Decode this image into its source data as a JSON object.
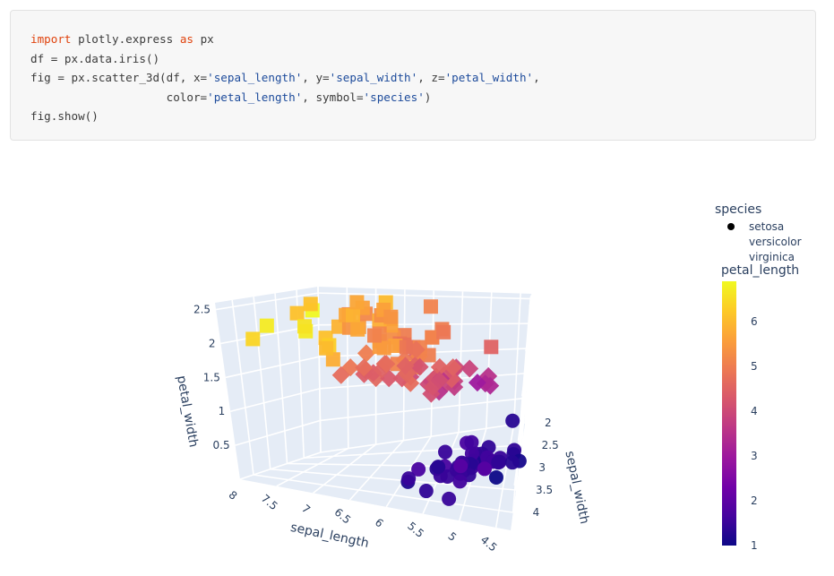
{
  "code": {
    "lines": [
      [
        [
          "kw",
          "import"
        ],
        [
          "t",
          " plotly.express "
        ],
        [
          "kw",
          "as"
        ],
        [
          "t",
          " px"
        ]
      ],
      [
        [
          "t",
          "df = px.data.iris()"
        ]
      ],
      [
        [
          "t",
          "fig = px.scatter_3d(df, x="
        ],
        [
          "str",
          "'sepal_length'"
        ],
        [
          "t",
          ", y="
        ],
        [
          "str",
          "'sepal_width'"
        ],
        [
          "t",
          ", z="
        ],
        [
          "str",
          "'petal_width'"
        ],
        [
          "t",
          ","
        ]
      ],
      [
        [
          "t",
          "                    color="
        ],
        [
          "str",
          "'petal_length'"
        ],
        [
          "t",
          ", symbol="
        ],
        [
          "str",
          "'species'"
        ],
        [
          "t",
          ")"
        ]
      ],
      [
        [
          "t",
          "fig.show()"
        ]
      ]
    ]
  },
  "chart_data": {
    "type": "scatter3d",
    "x_label": "sepal_length",
    "y_label": "sepal_width",
    "z_label": "petal_width",
    "x_ticks": [
      "4.5",
      "5",
      "5.5",
      "6",
      "6.5",
      "7",
      "7.5",
      "8"
    ],
    "y_ticks": [
      "2",
      "2.5",
      "3",
      "3.5",
      "4"
    ],
    "z_ticks": [
      "0.5",
      "1",
      "1.5",
      "2",
      "2.5"
    ],
    "x_range": [
      4.3,
      8
    ],
    "y_range": [
      2,
      4.4
    ],
    "z_range": [
      0,
      2.6
    ],
    "background_color": "#e5ecf6",
    "colorbar": {
      "title": "petal_length",
      "ticks": [
        "1",
        "2",
        "3",
        "4",
        "5",
        "6"
      ],
      "range": [
        1,
        6.9
      ],
      "colorscale": "plasma",
      "stops": [
        "#0d0887",
        "#46039f",
        "#7201a8",
        "#9c179e",
        "#bd3786",
        "#d8576b",
        "#ed7953",
        "#fb9f3a",
        "#fdca26",
        "#f0f921"
      ]
    },
    "legend": {
      "title": "species",
      "position": "top-right",
      "items": [
        {
          "name": "setosa",
          "symbol": "circle"
        },
        {
          "name": "versicolor",
          "symbol": "diamond"
        },
        {
          "name": "virginica",
          "symbol": "square"
        }
      ]
    },
    "series": [
      {
        "name": "setosa",
        "symbol": "circle",
        "points": [
          [
            5.1,
            3.5,
            1.4,
            0.2
          ],
          [
            4.9,
            3.0,
            1.4,
            0.2
          ],
          [
            4.7,
            3.2,
            1.3,
            0.2
          ],
          [
            4.6,
            3.1,
            1.5,
            0.2
          ],
          [
            5.0,
            3.6,
            1.4,
            0.2
          ],
          [
            5.4,
            3.9,
            1.7,
            0.4
          ],
          [
            4.6,
            3.4,
            1.4,
            0.3
          ],
          [
            5.0,
            3.4,
            1.5,
            0.2
          ],
          [
            4.4,
            2.9,
            1.4,
            0.2
          ],
          [
            4.9,
            3.1,
            1.5,
            0.1
          ],
          [
            5.4,
            3.7,
            1.5,
            0.2
          ],
          [
            4.8,
            3.4,
            1.6,
            0.2
          ],
          [
            4.8,
            3.0,
            1.4,
            0.1
          ],
          [
            4.3,
            3.0,
            1.1,
            0.1
          ],
          [
            5.8,
            4.0,
            1.2,
            0.2
          ],
          [
            5.7,
            4.4,
            1.5,
            0.4
          ],
          [
            5.4,
            3.9,
            1.3,
            0.4
          ],
          [
            5.1,
            3.5,
            1.4,
            0.3
          ],
          [
            5.7,
            3.8,
            1.7,
            0.3
          ],
          [
            5.1,
            3.8,
            1.5,
            0.3
          ],
          [
            5.4,
            3.4,
            1.7,
            0.2
          ],
          [
            5.1,
            3.7,
            1.5,
            0.4
          ],
          [
            4.6,
            3.6,
            1.0,
            0.2
          ],
          [
            5.1,
            3.3,
            1.7,
            0.5
          ],
          [
            4.8,
            3.4,
            1.9,
            0.2
          ],
          [
            5.0,
            3.0,
            1.6,
            0.2
          ],
          [
            5.0,
            3.4,
            1.6,
            0.4
          ],
          [
            5.2,
            3.5,
            1.5,
            0.2
          ],
          [
            5.2,
            3.4,
            1.4,
            0.2
          ],
          [
            4.7,
            3.2,
            1.6,
            0.2
          ],
          [
            4.8,
            3.1,
            1.6,
            0.2
          ],
          [
            5.4,
            3.4,
            1.5,
            0.4
          ],
          [
            5.2,
            4.1,
            1.5,
            0.1
          ],
          [
            5.5,
            4.2,
            1.4,
            0.2
          ],
          [
            4.9,
            3.1,
            1.5,
            0.1
          ],
          [
            5.0,
            3.2,
            1.2,
            0.2
          ],
          [
            5.5,
            3.5,
            1.3,
            0.2
          ],
          [
            4.9,
            3.1,
            1.5,
            0.1
          ],
          [
            4.4,
            3.0,
            1.3,
            0.2
          ],
          [
            5.1,
            3.4,
            1.5,
            0.2
          ],
          [
            5.0,
            3.5,
            1.3,
            0.3
          ],
          [
            4.5,
            2.3,
            1.3,
            0.3
          ],
          [
            4.4,
            3.2,
            1.3,
            0.2
          ],
          [
            5.0,
            3.5,
            1.6,
            0.6
          ],
          [
            5.1,
            3.8,
            1.9,
            0.4
          ],
          [
            4.8,
            3.0,
            1.4,
            0.3
          ],
          [
            5.1,
            3.8,
            1.6,
            0.2
          ],
          [
            4.6,
            3.2,
            1.4,
            0.2
          ],
          [
            5.3,
            3.7,
            1.5,
            0.2
          ],
          [
            5.0,
            3.3,
            1.4,
            0.2
          ]
        ]
      },
      {
        "name": "versicolor",
        "symbol": "diamond",
        "points": [
          [
            7.0,
            3.2,
            4.7,
            1.4
          ],
          [
            6.4,
            3.2,
            4.5,
            1.5
          ],
          [
            6.9,
            3.1,
            4.9,
            1.5
          ],
          [
            5.5,
            2.3,
            4.0,
            1.3
          ],
          [
            6.5,
            2.8,
            4.6,
            1.5
          ],
          [
            5.7,
            2.8,
            4.5,
            1.3
          ],
          [
            6.3,
            3.3,
            4.7,
            1.6
          ],
          [
            4.9,
            2.4,
            3.3,
            1.0
          ],
          [
            6.6,
            2.9,
            4.6,
            1.3
          ],
          [
            5.2,
            2.7,
            3.9,
            1.4
          ],
          [
            5.0,
            2.0,
            3.5,
            1.0
          ],
          [
            5.9,
            3.0,
            4.2,
            1.5
          ],
          [
            6.0,
            2.2,
            4.0,
            1.0
          ],
          [
            6.1,
            2.9,
            4.7,
            1.4
          ],
          [
            5.6,
            2.9,
            3.6,
            1.3
          ],
          [
            6.7,
            3.1,
            4.4,
            1.4
          ],
          [
            5.6,
            3.0,
            4.5,
            1.5
          ],
          [
            5.8,
            2.7,
            4.1,
            1.0
          ],
          [
            6.2,
            2.2,
            4.5,
            1.5
          ],
          [
            5.6,
            2.5,
            3.9,
            1.1
          ],
          [
            5.9,
            3.2,
            4.8,
            1.8
          ],
          [
            6.1,
            2.8,
            4.0,
            1.3
          ],
          [
            6.3,
            2.5,
            4.9,
            1.5
          ],
          [
            6.1,
            2.8,
            4.7,
            1.2
          ],
          [
            6.4,
            2.9,
            4.3,
            1.3
          ],
          [
            6.6,
            3.0,
            4.4,
            1.4
          ],
          [
            6.8,
            2.8,
            4.8,
            1.4
          ],
          [
            6.7,
            3.0,
            5.0,
            1.7
          ],
          [
            6.0,
            2.9,
            4.5,
            1.5
          ],
          [
            5.7,
            2.6,
            3.5,
            1.0
          ],
          [
            5.5,
            2.4,
            3.8,
            1.1
          ],
          [
            5.5,
            2.4,
            3.7,
            1.0
          ],
          [
            5.8,
            2.7,
            3.9,
            1.2
          ],
          [
            6.0,
            2.7,
            5.1,
            1.6
          ],
          [
            5.4,
            3.0,
            4.5,
            1.5
          ],
          [
            6.0,
            3.4,
            4.5,
            1.6
          ],
          [
            6.7,
            3.1,
            4.7,
            1.5
          ],
          [
            6.3,
            2.3,
            4.4,
            1.3
          ],
          [
            5.6,
            3.0,
            4.1,
            1.3
          ],
          [
            5.5,
            2.5,
            4.0,
            1.3
          ],
          [
            5.5,
            2.6,
            4.4,
            1.2
          ],
          [
            6.1,
            3.0,
            4.6,
            1.4
          ],
          [
            5.8,
            2.6,
            4.0,
            1.2
          ],
          [
            5.0,
            2.3,
            3.3,
            1.0
          ],
          [
            5.6,
            2.7,
            4.2,
            1.3
          ],
          [
            5.7,
            3.0,
            4.2,
            1.2
          ],
          [
            5.7,
            2.9,
            4.2,
            1.3
          ],
          [
            6.2,
            2.9,
            4.3,
            1.3
          ],
          [
            5.1,
            2.5,
            3.0,
            1.1
          ],
          [
            5.7,
            2.8,
            4.1,
            1.3
          ]
        ]
      },
      {
        "name": "virginica",
        "symbol": "square",
        "points": [
          [
            6.3,
            3.3,
            6.0,
            2.5
          ],
          [
            5.8,
            2.7,
            5.1,
            1.9
          ],
          [
            7.1,
            3.0,
            5.9,
            2.1
          ],
          [
            6.3,
            2.9,
            5.6,
            1.8
          ],
          [
            6.5,
            3.0,
            5.8,
            2.2
          ],
          [
            7.6,
            3.0,
            6.6,
            2.1
          ],
          [
            4.9,
            2.5,
            4.5,
            1.7
          ],
          [
            7.3,
            2.9,
            6.3,
            1.8
          ],
          [
            6.7,
            2.5,
            5.8,
            1.8
          ],
          [
            7.2,
            3.6,
            6.1,
            2.5
          ],
          [
            6.5,
            3.2,
            5.1,
            2.0
          ],
          [
            6.4,
            2.7,
            5.3,
            1.9
          ],
          [
            6.8,
            3.0,
            5.5,
            2.1
          ],
          [
            5.7,
            2.5,
            5.0,
            2.0
          ],
          [
            5.8,
            2.8,
            5.1,
            2.4
          ],
          [
            6.4,
            3.2,
            5.3,
            2.3
          ],
          [
            6.5,
            3.0,
            5.5,
            1.8
          ],
          [
            7.7,
            3.8,
            6.7,
            2.2
          ],
          [
            7.7,
            2.6,
            6.9,
            2.3
          ],
          [
            6.0,
            2.2,
            5.0,
            1.5
          ],
          [
            6.9,
            3.2,
            5.7,
            2.3
          ],
          [
            5.6,
            2.8,
            4.9,
            2.0
          ],
          [
            7.7,
            2.8,
            6.7,
            2.0
          ],
          [
            6.3,
            2.7,
            4.9,
            1.8
          ],
          [
            6.7,
            3.3,
            5.7,
            2.1
          ],
          [
            7.2,
            3.2,
            6.0,
            1.8
          ],
          [
            6.2,
            2.8,
            4.8,
            1.8
          ],
          [
            6.1,
            3.0,
            4.9,
            1.8
          ],
          [
            6.4,
            2.8,
            5.6,
            2.1
          ],
          [
            7.2,
            3.0,
            5.8,
            1.6
          ],
          [
            7.4,
            2.8,
            6.1,
            1.9
          ],
          [
            7.9,
            3.8,
            6.4,
            2.0
          ],
          [
            6.4,
            2.8,
            5.6,
            2.2
          ],
          [
            6.3,
            2.8,
            5.1,
            1.5
          ],
          [
            6.1,
            2.6,
            5.6,
            1.4
          ],
          [
            7.7,
            3.0,
            6.1,
            2.3
          ],
          [
            6.3,
            3.4,
            5.6,
            2.4
          ],
          [
            6.4,
            3.1,
            5.5,
            1.8
          ],
          [
            6.0,
            3.0,
            4.8,
            1.8
          ],
          [
            6.9,
            3.1,
            5.4,
            2.1
          ],
          [
            6.7,
            3.1,
            5.6,
            2.4
          ],
          [
            6.9,
            3.1,
            5.1,
            2.3
          ],
          [
            5.8,
            2.7,
            5.1,
            1.9
          ],
          [
            6.8,
            3.2,
            5.9,
            2.3
          ],
          [
            6.7,
            3.3,
            5.7,
            2.5
          ],
          [
            6.7,
            3.0,
            5.2,
            2.3
          ],
          [
            6.3,
            2.5,
            5.0,
            1.9
          ],
          [
            6.5,
            3.0,
            5.2,
            2.0
          ],
          [
            6.2,
            3.4,
            5.4,
            2.3
          ],
          [
            5.9,
            3.0,
            5.1,
            1.8
          ]
        ]
      }
    ],
    "point_fields": [
      "sepal_length",
      "sepal_width",
      "petal_length",
      "petal_width"
    ]
  }
}
